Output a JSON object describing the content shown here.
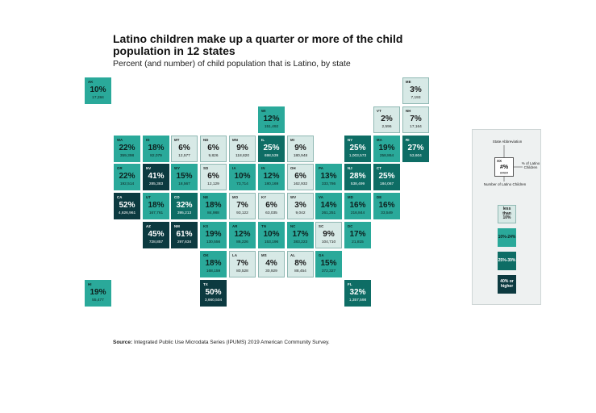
{
  "chart_data": {
    "type": "tile-map",
    "title": "Latino children make up a quarter or more of the child population in 12 states",
    "subtitle": "Percent (and number) of child population that is Latino, by state",
    "bins": [
      {
        "label": "less than 10%",
        "color": "#d7e9e6",
        "text_color": "#1a1a1a",
        "border": "#8fb8b3"
      },
      {
        "label": "10%-24%",
        "color": "#2aa99a",
        "text_color": "#0d1f1d",
        "border": "#2aa99a"
      },
      {
        "label": "25%-39%",
        "color": "#0e6d65",
        "text_color": "#ffffff",
        "border": "#0e6d65"
      },
      {
        "label": "40% or higher",
        "color": "#0c3a40",
        "text_color": "#ffffff",
        "border": "#0c3a40"
      }
    ],
    "states": [
      {
        "abbr": "AK",
        "pct": "10%",
        "number": "17,284",
        "bin": 1,
        "col": 0,
        "row": 0
      },
      {
        "abbr": "ME",
        "pct": "3%",
        "number": "7,193",
        "bin": 0,
        "col": 11,
        "row": 0
      },
      {
        "abbr": "WI",
        "pct": "12%",
        "number": "151,492",
        "bin": 1,
        "col": 6,
        "row": 1
      },
      {
        "abbr": "VT",
        "pct": "2%",
        "number": "2,596",
        "bin": 0,
        "col": 10,
        "row": 1
      },
      {
        "abbr": "NH",
        "pct": "7%",
        "number": "17,164",
        "bin": 0,
        "col": 11,
        "row": 1
      },
      {
        "abbr": "WA",
        "pct": "22%",
        "number": "359,398",
        "bin": 1,
        "col": 1,
        "row": 2
      },
      {
        "abbr": "ID",
        "pct": "18%",
        "number": "82,079",
        "bin": 1,
        "col": 2,
        "row": 2
      },
      {
        "abbr": "MT",
        "pct": "6%",
        "number": "12,577",
        "bin": 0,
        "col": 3,
        "row": 2
      },
      {
        "abbr": "ND",
        "pct": "6%",
        "number": "9,826",
        "bin": 0,
        "col": 4,
        "row": 2
      },
      {
        "abbr": "MN",
        "pct": "9%",
        "number": "118,820",
        "bin": 0,
        "col": 5,
        "row": 2
      },
      {
        "abbr": "IL",
        "pct": "25%",
        "number": "698,539",
        "bin": 2,
        "col": 6,
        "row": 2
      },
      {
        "abbr": "MI",
        "pct": "9%",
        "number": "180,948",
        "bin": 0,
        "col": 7,
        "row": 2
      },
      {
        "abbr": "NY",
        "pct": "25%",
        "number": "1,003,573",
        "bin": 2,
        "col": 9,
        "row": 2
      },
      {
        "abbr": "MA",
        "pct": "19%",
        "number": "258,864",
        "bin": 1,
        "col": 10,
        "row": 2
      },
      {
        "abbr": "RI",
        "pct": "27%",
        "number": "53,604",
        "bin": 2,
        "col": 11,
        "row": 2
      },
      {
        "abbr": "OR",
        "pct": "22%",
        "number": "192,514",
        "bin": 1,
        "col": 1,
        "row": 3
      },
      {
        "abbr": "NV",
        "pct": "41%",
        "number": "285,383",
        "bin": 3,
        "col": 2,
        "row": 3
      },
      {
        "abbr": "WY",
        "pct": "15%",
        "number": "18,567",
        "bin": 1,
        "col": 3,
        "row": 3
      },
      {
        "abbr": "SD",
        "pct": "6%",
        "number": "12,129",
        "bin": 0,
        "col": 4,
        "row": 3
      },
      {
        "abbr": "IA",
        "pct": "10%",
        "number": "73,714",
        "bin": 1,
        "col": 5,
        "row": 3
      },
      {
        "abbr": "IN",
        "pct": "12%",
        "number": "180,169",
        "bin": 1,
        "col": 6,
        "row": 3
      },
      {
        "abbr": "OH",
        "pct": "6%",
        "number": "162,932",
        "bin": 0,
        "col": 7,
        "row": 3
      },
      {
        "abbr": "PA",
        "pct": "13%",
        "number": "333,786",
        "bin": 1,
        "col": 8,
        "row": 3
      },
      {
        "abbr": "NJ",
        "pct": "28%",
        "number": "538,499",
        "bin": 2,
        "col": 9,
        "row": 3
      },
      {
        "abbr": "CT",
        "pct": "25%",
        "number": "184,067",
        "bin": 2,
        "col": 10,
        "row": 3
      },
      {
        "abbr": "CA",
        "pct": "52%",
        "number": "4,626,961",
        "bin": 3,
        "col": 1,
        "row": 4
      },
      {
        "abbr": "UT",
        "pct": "18%",
        "number": "167,761",
        "bin": 1,
        "col": 2,
        "row": 4
      },
      {
        "abbr": "CO",
        "pct": "32%",
        "number": "395,213",
        "bin": 2,
        "col": 3,
        "row": 4
      },
      {
        "abbr": "NE",
        "pct": "18%",
        "number": "84,988",
        "bin": 1,
        "col": 4,
        "row": 4
      },
      {
        "abbr": "MO",
        "pct": "7%",
        "number": "93,122",
        "bin": 0,
        "col": 5,
        "row": 4
      },
      {
        "abbr": "KY",
        "pct": "6%",
        "number": "63,035",
        "bin": 0,
        "col": 6,
        "row": 4
      },
      {
        "abbr": "WV",
        "pct": "3%",
        "number": "9,042",
        "bin": 0,
        "col": 7,
        "row": 4
      },
      {
        "abbr": "VA",
        "pct": "14%",
        "number": "261,251",
        "bin": 1,
        "col": 8,
        "row": 4
      },
      {
        "abbr": "MD",
        "pct": "16%",
        "number": "216,844",
        "bin": 1,
        "col": 9,
        "row": 4
      },
      {
        "abbr": "DE",
        "pct": "16%",
        "number": "33,549",
        "bin": 1,
        "col": 10,
        "row": 4
      },
      {
        "abbr": "AZ",
        "pct": "45%",
        "number": "728,857",
        "bin": 3,
        "col": 2,
        "row": 5
      },
      {
        "abbr": "NM",
        "pct": "61%",
        "number": "297,634",
        "bin": 3,
        "col": 3,
        "row": 5
      },
      {
        "abbr": "KS",
        "pct": "19%",
        "number": "130,556",
        "bin": 1,
        "col": 4,
        "row": 5
      },
      {
        "abbr": "AR",
        "pct": "12%",
        "number": "86,226",
        "bin": 1,
        "col": 5,
        "row": 5
      },
      {
        "abbr": "TN",
        "pct": "10%",
        "number": "153,196",
        "bin": 1,
        "col": 6,
        "row": 5
      },
      {
        "abbr": "NC",
        "pct": "17%",
        "number": "383,223",
        "bin": 1,
        "col": 7,
        "row": 5
      },
      {
        "abbr": "SC",
        "pct": "9%",
        "number": "104,710",
        "bin": 0,
        "col": 8,
        "row": 5
      },
      {
        "abbr": "DC",
        "pct": "17%",
        "number": "21,815",
        "bin": 1,
        "col": 9,
        "row": 5
      },
      {
        "abbr": "OK",
        "pct": "18%",
        "number": "168,159",
        "bin": 1,
        "col": 4,
        "row": 6
      },
      {
        "abbr": "LA",
        "pct": "7%",
        "number": "80,528",
        "bin": 0,
        "col": 5,
        "row": 6
      },
      {
        "abbr": "MS",
        "pct": "4%",
        "number": "30,929",
        "bin": 0,
        "col": 6,
        "row": 6
      },
      {
        "abbr": "AL",
        "pct": "8%",
        "number": "88,454",
        "bin": 0,
        "col": 7,
        "row": 6
      },
      {
        "abbr": "GA",
        "pct": "15%",
        "number": "372,327",
        "bin": 1,
        "col": 8,
        "row": 6
      },
      {
        "abbr": "HI",
        "pct": "19%",
        "number": "55,477",
        "bin": 1,
        "col": 0,
        "row": 7
      },
      {
        "abbr": "TX",
        "pct": "50%",
        "number": "3,660,504",
        "bin": 3,
        "col": 4,
        "row": 7
      },
      {
        "abbr": "FL",
        "pct": "32%",
        "number": "1,357,598",
        "bin": 2,
        "col": 9,
        "row": 7
      }
    ]
  },
  "legend": {
    "state_abbreviation_label": "State Abbreviation",
    "sample_abbr": "XX",
    "sample_pct": "#%",
    "sample_num": "####",
    "pct_of_latino_label": "% of Latino Children",
    "number_label": "Number of Latino Children"
  },
  "source": {
    "label": "Source:",
    "text": " Integrated Public Use Microdata Series (IPUMS) 2019 American Community Survey."
  }
}
